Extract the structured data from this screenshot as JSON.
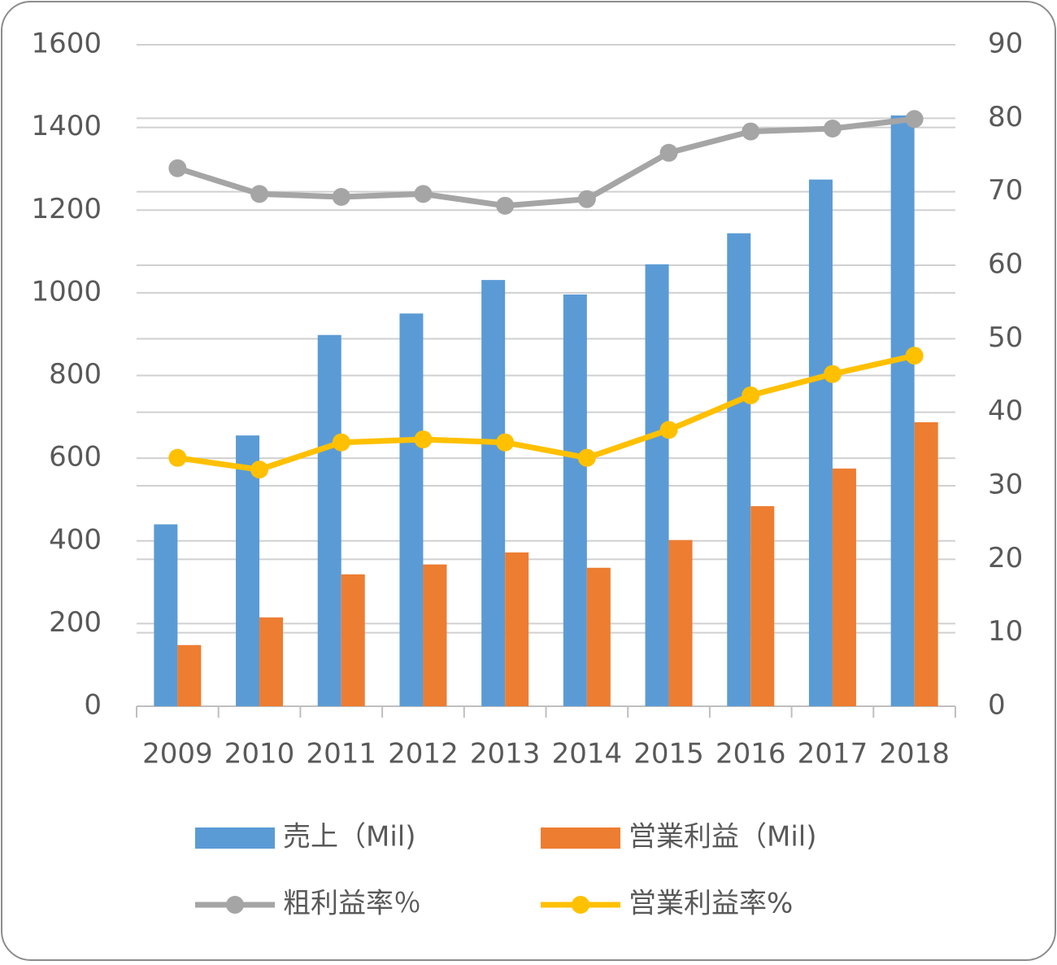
{
  "chart_data": {
    "type": "bar-line",
    "categories": [
      "2009",
      "2010",
      "2011",
      "2012",
      "2013",
      "2014",
      "2015",
      "2016",
      "2017",
      "2018"
    ],
    "series": [
      {
        "name": "売上（Mil)",
        "type": "bar",
        "color": "#5b9bd5",
        "values": [
          440,
          655,
          898,
          950,
          1031,
          996,
          1069,
          1144,
          1274,
          1429
        ]
      },
      {
        "name": "営業利益（Mil)",
        "type": "bar",
        "color": "#ed7d31",
        "values": [
          148,
          215,
          319,
          343,
          372,
          335,
          402,
          484,
          575,
          687
        ]
      },
      {
        "name": "粗利益率％",
        "type": "line",
        "axis": "y2",
        "color": "#a5a5a5",
        "values": [
          73.2,
          69.7,
          69.3,
          69.7,
          68.1,
          69.0,
          75.3,
          78.2,
          78.6,
          79.9
        ]
      },
      {
        "name": "営業利益率%",
        "type": "line",
        "axis": "y2",
        "color": "#ffc000",
        "values": [
          33.8,
          32.2,
          35.9,
          36.3,
          35.9,
          33.8,
          37.6,
          42.3,
          45.2,
          47.7
        ]
      }
    ],
    "ylim": [
      0,
      1600
    ],
    "yticks": [
      0,
      200,
      400,
      600,
      800,
      1000,
      1200,
      1400,
      1600
    ],
    "y2lim": [
      0,
      90
    ],
    "y2ticks": [
      0,
      10,
      20,
      30,
      40,
      50,
      60,
      70,
      80,
      90
    ],
    "grid": true,
    "legend": "bottom"
  }
}
